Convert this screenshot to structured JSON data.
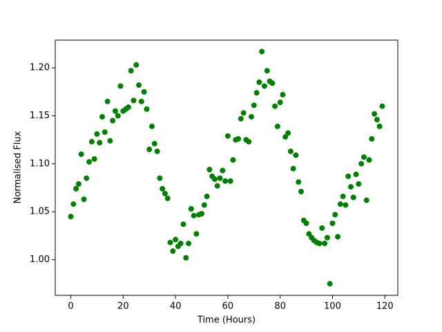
{
  "chart_data": {
    "type": "scatter",
    "x_label": "Time (Hours)",
    "y_label": "Normalised Flux",
    "x": [
      0,
      1,
      2,
      3,
      4,
      5,
      6,
      7,
      8,
      9,
      10,
      11,
      12,
      13,
      14,
      15,
      16,
      17,
      18,
      19,
      20,
      21,
      22,
      23,
      24,
      25,
      26,
      27,
      28,
      29,
      30,
      31,
      32,
      33,
      34,
      35,
      36,
      37,
      38,
      39,
      40,
      41,
      42,
      43,
      44,
      45,
      46,
      47,
      48,
      49,
      50,
      51,
      52,
      53,
      54,
      55,
      56,
      57,
      58,
      59,
      60,
      61,
      62,
      63,
      64,
      65,
      66,
      67,
      68,
      69,
      70,
      71,
      72,
      73,
      74,
      75,
      76,
      77,
      78,
      79,
      80,
      81,
      82,
      83,
      84,
      85,
      86,
      87,
      88,
      89,
      90,
      91,
      92,
      93,
      94,
      95,
      96,
      97,
      98,
      99,
      100,
      101,
      102,
      103,
      104,
      105,
      106,
      107,
      108,
      109,
      110,
      111,
      112,
      113,
      114,
      115,
      116,
      117,
      118,
      119
    ],
    "series": [
      {
        "color": "#008000",
        "values": [
          1.045,
          1.058,
          1.074,
          1.079,
          1.11,
          1.063,
          1.085,
          1.102,
          1.123,
          1.105,
          1.131,
          1.122,
          1.149,
          1.133,
          1.165,
          1.124,
          1.145,
          1.155,
          1.15,
          1.181,
          1.155,
          1.157,
          1.159,
          1.197,
          1.166,
          1.203,
          1.182,
          1.165,
          1.175,
          1.157,
          1.115,
          1.139,
          1.121,
          1.113,
          1.085,
          1.074,
          1.069,
          1.064,
          1.018,
          1.009,
          1.021,
          1.014,
          1.017,
          1.037,
          1.002,
          1.017,
          1.053,
          1.046,
          1.027,
          1.047,
          1.048,
          1.057,
          1.066,
          1.094,
          1.087,
          1.084,
          1.077,
          1.085,
          1.093,
          1.082,
          1.129,
          1.082,
          1.104,
          1.125,
          1.126,
          1.147,
          1.153,
          1.125,
          1.123,
          1.149,
          1.161,
          1.174,
          1.185,
          1.217,
          1.181,
          1.197,
          1.186,
          1.184,
          1.16,
          1.139,
          1.164,
          1.172,
          1.128,
          1.132,
          1.113,
          1.095,
          1.109,
          1.081,
          1.071,
          1.041,
          1.038,
          1.027,
          1.023,
          1.02,
          1.018,
          1.017,
          1.033,
          1.017,
          1.023,
          0.975,
          1.038,
          1.047,
          1.024,
          1.058,
          1.066,
          1.057,
          1.087,
          1.076,
          1.065,
          1.089,
          1.079,
          1.1,
          1.107,
          1.062,
          1.104,
          1.126,
          1.152,
          1.146,
          1.139,
          1.16
        ]
      }
    ],
    "xlim": [
      -5.95,
      124.95
    ],
    "xticks": [
      0,
      20,
      40,
      60,
      80,
      100,
      120
    ],
    "ylim": [
      0.9629,
      1.2289
    ],
    "yticks": [
      {
        "value": 1.0,
        "label": "1.00"
      },
      {
        "value": 1.05,
        "label": "1.05"
      },
      {
        "value": 1.1,
        "label": "1.10"
      },
      {
        "value": 1.15,
        "label": "1.15"
      },
      {
        "value": 1.2,
        "label": "1.20"
      }
    ]
  }
}
